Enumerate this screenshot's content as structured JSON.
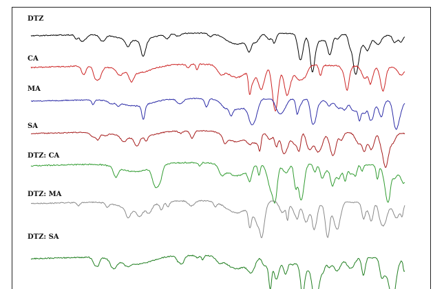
{
  "chart_data": {
    "type": "line",
    "x": [],
    "series": [
      {
        "name": "DTZ",
        "color": "#000000"
      },
      {
        "name": "CA",
        "color": "#cc2222"
      },
      {
        "name": "MA",
        "color": "#2a2aa6"
      },
      {
        "name": "SA",
        "color": "#a51a1a"
      },
      {
        "name": "DTZ: CA",
        "color": "#2f9b2f"
      },
      {
        "name": "DTZ: MA",
        "color": "#888888"
      },
      {
        "name": "DTZ: SA",
        "color": "#1f7e1f"
      }
    ],
    "title": "",
    "xlabel": "",
    "ylabel": "",
    "grid": false
  }
}
